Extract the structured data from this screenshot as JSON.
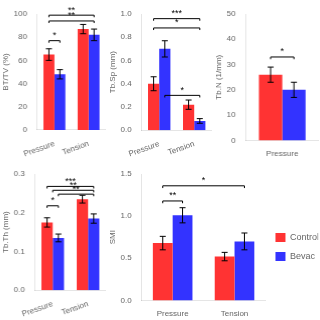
{
  "chart_data": [
    {
      "type": "bar",
      "ylabel": "BT/TV (%)",
      "categories": [
        "Pressure",
        "Tension"
      ],
      "series": [
        {
          "name": "Control",
          "color": "#FF3333",
          "values": [
            65,
            87
          ],
          "errors": [
            5,
            4
          ]
        },
        {
          "name": "Bevac",
          "color": "#3333FF",
          "values": [
            48,
            82
          ],
          "errors": [
            4,
            5
          ]
        }
      ],
      "ylim": [
        0,
        100
      ],
      "yticks": [
        0,
        20,
        40,
        60,
        80,
        100
      ],
      "grid": false,
      "annotations": [
        {
          "label": "*",
          "x1": -0.16,
          "x2": 0.16,
          "y": 77
        },
        {
          "label": "**",
          "x1": -0.16,
          "x2": 1.16,
          "y": 94
        },
        {
          "label": "**",
          "x1": -0.16,
          "x2": 1.16,
          "y": 99
        }
      ]
    },
    {
      "type": "bar",
      "ylabel": "Tb.Sp (mm)",
      "categories": [
        "Pressure",
        "Tension"
      ],
      "series": [
        {
          "name": "Control",
          "color": "#FF3333",
          "values": [
            0.4,
            0.22
          ],
          "errors": [
            0.06,
            0.04
          ]
        },
        {
          "name": "Bevac",
          "color": "#3333FF",
          "values": [
            0.7,
            0.08
          ],
          "errors": [
            0.07,
            0.02
          ]
        }
      ],
      "ylim": [
        0.0,
        1.0
      ],
      "yticks": [
        {
          "value": 0,
          "label": "0.0"
        },
        0.2,
        0.4,
        0.6,
        0.8,
        {
          "value": 1,
          "label": "1.0"
        }
      ],
      "grid": false,
      "annotations": [
        {
          "label": "*",
          "x1": -0.16,
          "x2": 1.16,
          "y": 0.88
        },
        {
          "label": "***",
          "x1": -0.16,
          "x2": 1.16,
          "y": 0.96
        },
        {
          "label": "*",
          "x1": 0.16,
          "x2": 1.16,
          "y": 0.3
        }
      ]
    },
    {
      "type": "bar",
      "ylabel": "Tb.N (1/mm)",
      "categories": [
        "Pressure"
      ],
      "series": [
        {
          "name": "Control",
          "color": "#FF3333",
          "values": [
            26
          ],
          "errors": [
            3
          ]
        },
        {
          "name": "Bevac",
          "color": "#3333FF",
          "values": [
            20
          ],
          "errors": [
            3
          ]
        }
      ],
      "ylim": [
        0,
        50
      ],
      "yticks": [
        0,
        10,
        20,
        30,
        40,
        50
      ],
      "grid": false,
      "annotations": [
        {
          "label": "*",
          "x1": -0.16,
          "x2": 0.16,
          "y": 33
        }
      ]
    },
    {
      "type": "bar",
      "ylabel": "Tb.Th (mm)",
      "categories": [
        "Pressure",
        "Tension"
      ],
      "series": [
        {
          "name": "Control",
          "color": "#FF3333",
          "values": [
            0.175,
            0.235
          ],
          "errors": [
            0.012,
            0.01
          ]
        },
        {
          "name": "Bevac",
          "color": "#3333FF",
          "values": [
            0.135,
            0.185
          ],
          "errors": [
            0.01,
            0.012
          ]
        }
      ],
      "ylim": [
        0.0,
        0.3
      ],
      "yticks": [
        {
          "value": 0,
          "label": "0.0"
        },
        0.1,
        0.2,
        0.3
      ],
      "grid": false,
      "annotations": [
        {
          "label": "*",
          "x1": -0.16,
          "x2": 0.16,
          "y": 0.218
        },
        {
          "label": "***",
          "x1": -0.16,
          "x2": 1.16,
          "y": 0.268
        },
        {
          "label": "**",
          "x1": 0.0,
          "x2": 1.16,
          "y": 0.258
        },
        {
          "label": "**",
          "x1": 0.16,
          "x2": 1.16,
          "y": 0.248
        }
      ]
    },
    {
      "type": "bar",
      "ylabel": "SMI",
      "categories": [
        "Pressure",
        "Tension"
      ],
      "series": [
        {
          "name": "Control",
          "color": "#FF3333",
          "values": [
            0.68,
            0.52
          ],
          "errors": [
            0.08,
            0.05
          ]
        },
        {
          "name": "Bevac",
          "color": "#3333FF",
          "values": [
            1.01,
            0.7
          ],
          "errors": [
            0.09,
            0.1
          ]
        }
      ],
      "ylim": [
        0.0,
        1.5
      ],
      "yticks": [
        {
          "value": 0,
          "label": "0.0"
        },
        0.5,
        {
          "value": 1,
          "label": "1.0"
        },
        1.5
      ],
      "grid": false,
      "legend": "right",
      "annotations": [
        {
          "label": "**",
          "x1": -0.16,
          "x2": 0.16,
          "y": 1.18
        },
        {
          "label": "*",
          "x1": -0.16,
          "x2": 1.16,
          "y": 1.36
        }
      ]
    }
  ]
}
